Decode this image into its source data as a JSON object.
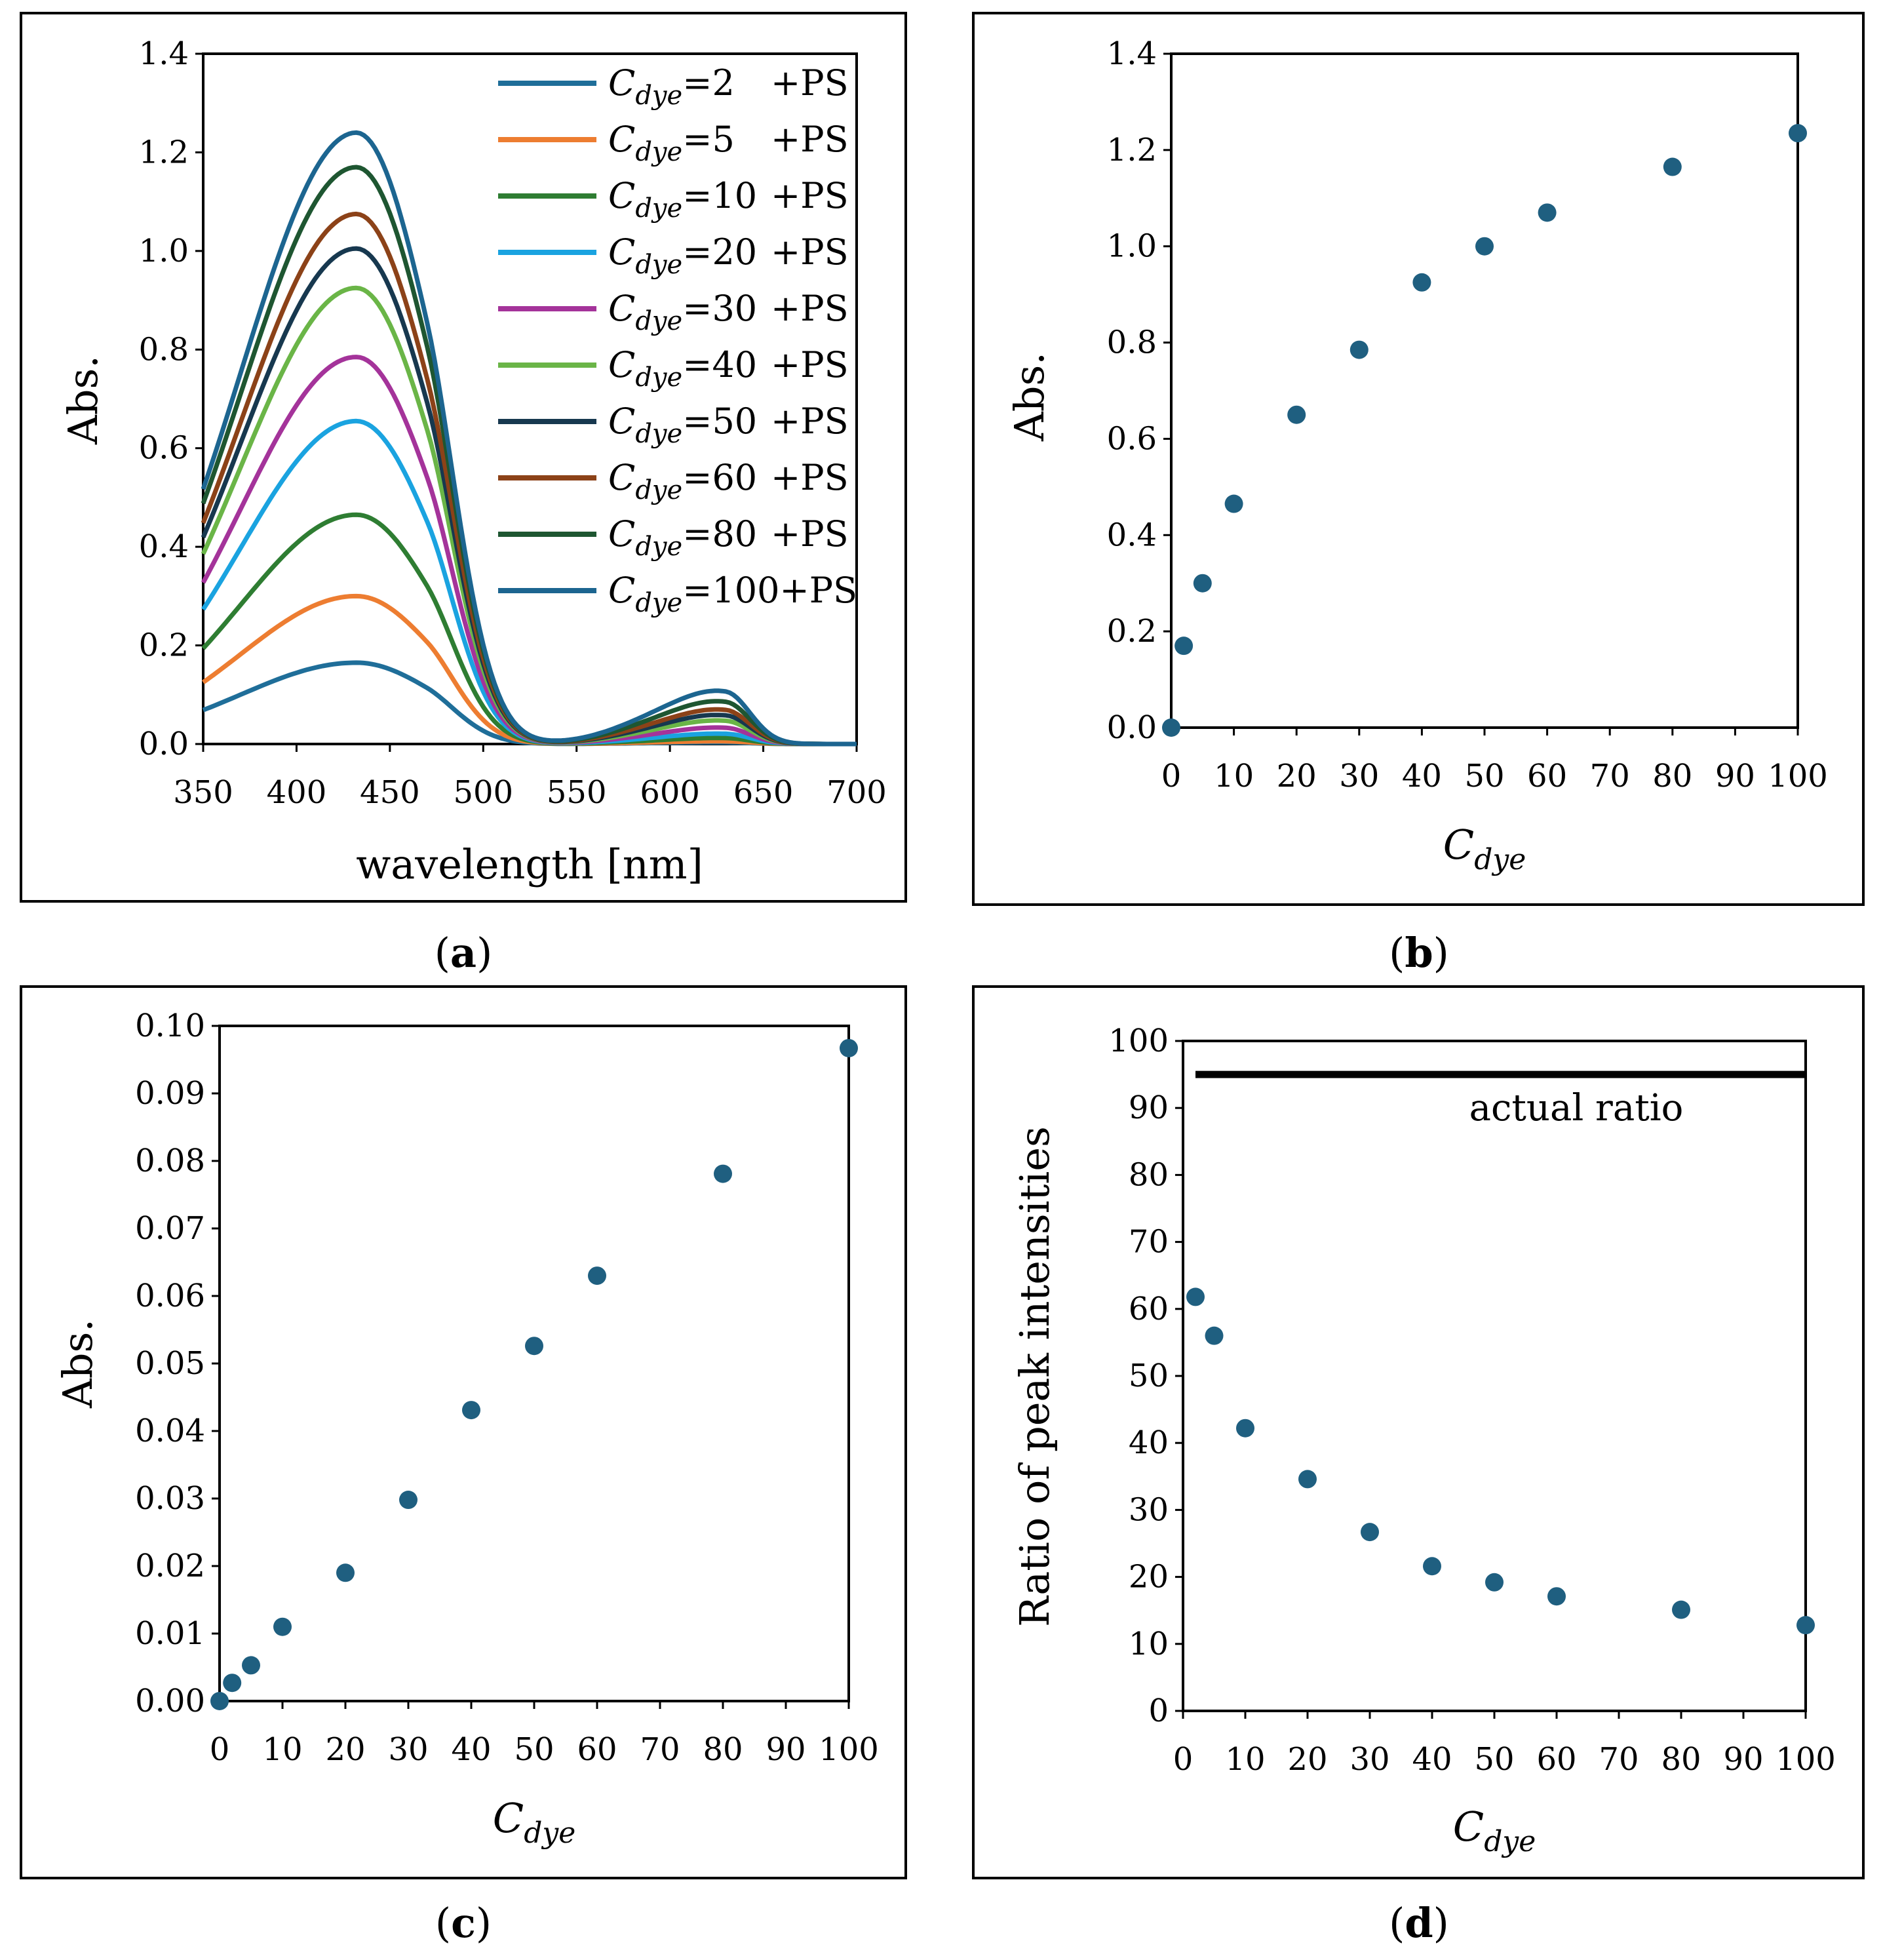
{
  "figure": {
    "panels": [
      "a",
      "b",
      "c",
      "d"
    ]
  },
  "chart_data": [
    {
      "id": "a",
      "type": "line",
      "caption_prefix": "(",
      "caption_letter": "a",
      "caption_suffix": ")",
      "xlabel": "wavelength [nm]",
      "ylabel": "Abs.",
      "xlim": [
        350,
        700
      ],
      "ylim": [
        0,
        1.4
      ],
      "xticks": [
        "350",
        "400",
        "450",
        "500",
        "550",
        "600",
        "650",
        "700"
      ],
      "xtick_values": [
        350,
        400,
        450,
        500,
        550,
        600,
        650,
        700
      ],
      "yticks": [
        "0.0",
        "0.2",
        "0.4",
        "0.6",
        "0.8",
        "1.0",
        "1.2",
        "1.4"
      ],
      "ytick_values": [
        0,
        0.2,
        0.4,
        0.6,
        0.8,
        1.0,
        1.2,
        1.4
      ],
      "legend_position": "top-right",
      "series": [
        {
          "name_base": "C",
          "name_sub": "dye",
          "name_rest": "=2",
          "name_ps": "+PS",
          "color": "#1f6e99",
          "peak1": 0.165,
          "peak2": 0.003
        },
        {
          "name_base": "C",
          "name_sub": "dye",
          "name_rest": "=5",
          "name_ps": "+PS",
          "color": "#ed7d31",
          "peak1": 0.3,
          "peak2": 0.005
        },
        {
          "name_base": "C",
          "name_sub": "dye",
          "name_rest": "=10",
          "name_ps": "+PS",
          "color": "#2e7d32",
          "peak1": 0.465,
          "peak2": 0.011
        },
        {
          "name_base": "C",
          "name_sub": "dye",
          "name_rest": "=20",
          "name_ps": "+PS",
          "color": "#1aa3e0",
          "peak1": 0.655,
          "peak2": 0.019
        },
        {
          "name_base": "C",
          "name_sub": "dye",
          "name_rest": "=30",
          "name_ps": "+PS",
          "color": "#a4339a",
          "peak1": 0.785,
          "peak2": 0.03
        },
        {
          "name_base": "C",
          "name_sub": "dye",
          "name_rest": "=40",
          "name_ps": "+PS",
          "color": "#6ab547",
          "peak1": 0.925,
          "peak2": 0.043
        },
        {
          "name_base": "C",
          "name_sub": "dye",
          "name_rest": "=50",
          "name_ps": "+PS",
          "color": "#17384f",
          "peak1": 1.005,
          "peak2": 0.053
        },
        {
          "name_base": "C",
          "name_sub": "dye",
          "name_rest": "=60",
          "name_ps": "+PS",
          "color": "#8c4218",
          "peak1": 1.075,
          "peak2": 0.063
        },
        {
          "name_base": "C",
          "name_sub": "dye",
          "name_rest": "=80",
          "name_ps": "+PS",
          "color": "#1e5631",
          "peak1": 1.17,
          "peak2": 0.078
        },
        {
          "name_base": "C",
          "name_sub": "dye",
          "name_rest": "=100+PS",
          "name_ps": "",
          "color": "#1c6590",
          "peak1": 1.24,
          "peak2": 0.097
        }
      ]
    },
    {
      "id": "b",
      "type": "scatter",
      "caption_prefix": "(",
      "caption_letter": "b",
      "caption_suffix": ")",
      "xlabel_base": "C",
      "xlabel_sub": "dye",
      "ylabel": "Abs.",
      "xlim": [
        0,
        100
      ],
      "ylim": [
        0,
        1.4
      ],
      "xticks": [
        "0",
        "10",
        "20",
        "30",
        "40",
        "50",
        "60",
        "70",
        "80",
        "90",
        "100"
      ],
      "xtick_values": [
        0,
        10,
        20,
        30,
        40,
        50,
        60,
        70,
        80,
        90,
        100
      ],
      "yticks": [
        "0.0",
        "0.2",
        "0.4",
        "0.6",
        "0.8",
        "1.0",
        "1.2",
        "1.4"
      ],
      "ytick_values": [
        0,
        0.2,
        0.4,
        0.6,
        0.8,
        1.0,
        1.2,
        1.4
      ],
      "marker_color": "#1f5f80",
      "x": [
        0,
        2,
        5,
        10,
        20,
        30,
        40,
        50,
        60,
        80,
        100
      ],
      "y": [
        0.0,
        0.17,
        0.3,
        0.465,
        0.65,
        0.785,
        0.925,
        1.0,
        1.07,
        1.165,
        1.235
      ]
    },
    {
      "id": "c",
      "type": "scatter",
      "caption_prefix": "(",
      "caption_letter": "c",
      "caption_suffix": ")",
      "xlabel_base": "C",
      "xlabel_sub": "dye",
      "ylabel": "Abs.",
      "xlim": [
        0,
        100
      ],
      "ylim": [
        0,
        0.1
      ],
      "xticks": [
        "0",
        "10",
        "20",
        "30",
        "40",
        "50",
        "60",
        "70",
        "80",
        "90",
        "100"
      ],
      "xtick_values": [
        0,
        10,
        20,
        30,
        40,
        50,
        60,
        70,
        80,
        90,
        100
      ],
      "yticks": [
        "0.00",
        "0.01",
        "0.02",
        "0.03",
        "0.04",
        "0.05",
        "0.06",
        "0.07",
        "0.08",
        "0.09",
        "0.10"
      ],
      "ytick_values": [
        0,
        0.01,
        0.02,
        0.03,
        0.04,
        0.05,
        0.06,
        0.07,
        0.08,
        0.09,
        0.1
      ],
      "marker_color": "#1f5f80",
      "x": [
        0,
        2,
        5,
        10,
        20,
        30,
        40,
        50,
        60,
        80,
        100
      ],
      "y": [
        0.0,
        0.0027,
        0.0053,
        0.011,
        0.019,
        0.0298,
        0.0431,
        0.0526,
        0.063,
        0.0781,
        0.0967
      ]
    },
    {
      "id": "d",
      "type": "scatter",
      "caption_prefix": "(",
      "caption_letter": "d",
      "caption_suffix": ")",
      "xlabel_base": "C",
      "xlabel_sub": "dye",
      "ylabel": "Ratio of peak intensities",
      "xlim": [
        0,
        100
      ],
      "ylim": [
        0,
        100
      ],
      "xticks": [
        "0",
        "10",
        "20",
        "30",
        "40",
        "50",
        "60",
        "70",
        "80",
        "90",
        "100"
      ],
      "xtick_values": [
        0,
        10,
        20,
        30,
        40,
        50,
        60,
        70,
        80,
        90,
        100
      ],
      "yticks": [
        "0",
        "10",
        "20",
        "30",
        "40",
        "50",
        "60",
        "70",
        "80",
        "90",
        "100"
      ],
      "ytick_values": [
        0,
        10,
        20,
        30,
        40,
        50,
        60,
        70,
        80,
        90,
        100
      ],
      "marker_color": "#1f5f80",
      "x": [
        2,
        5,
        10,
        20,
        30,
        40,
        50,
        60,
        80,
        100
      ],
      "y": [
        61.8,
        56.0,
        42.2,
        34.6,
        26.7,
        21.6,
        19.2,
        17.1,
        15.1,
        12.8
      ],
      "reference_line": {
        "label": "actual ratio",
        "y": 95,
        "x_start": 2,
        "x_end": 100
      }
    }
  ]
}
